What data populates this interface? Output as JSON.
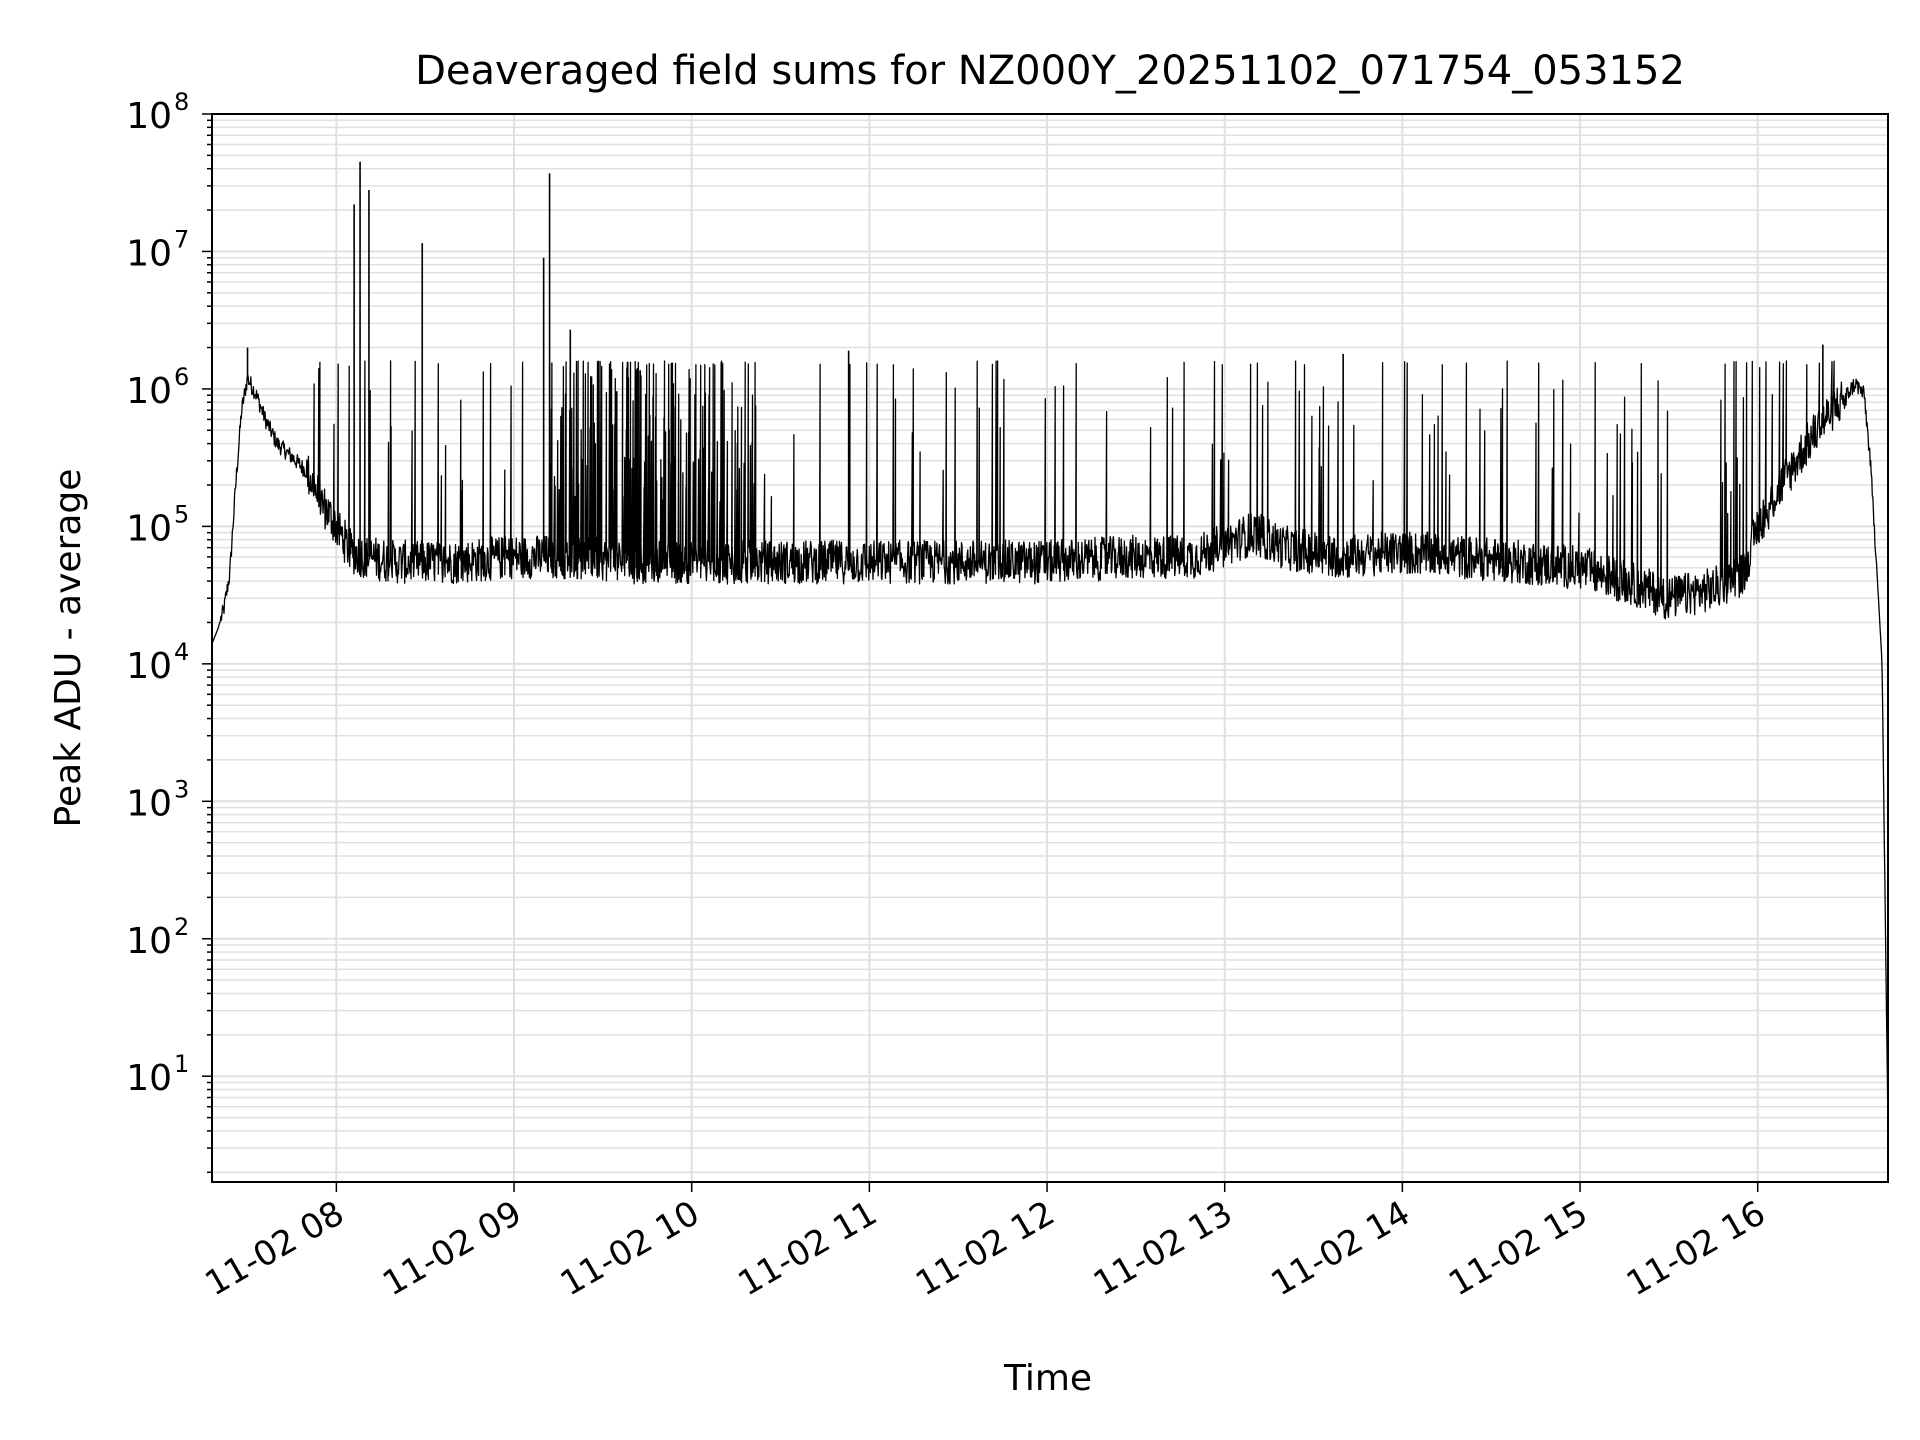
{
  "chart_data": {
    "type": "line",
    "title": "Deaveraged field sums for NZ000Y_20251102_071754_053152",
    "xlabel": "Time",
    "ylabel": "Peak ADU - average",
    "y_scale": "log",
    "ylim": [
      1.7,
      100000000
    ],
    "xlim": [
      "11-02 07:18",
      "11-02 16:44"
    ],
    "x_ticks": [
      "11-02 08",
      "11-02 09",
      "11-02 10",
      "11-02 11",
      "11-02 12",
      "11-02 13",
      "11-02 14",
      "11-02 15",
      "11-02 16"
    ],
    "y_ticks": [
      {
        "base": "10",
        "exp": "1"
      },
      {
        "base": "10",
        "exp": "2"
      },
      {
        "base": "10",
        "exp": "3"
      },
      {
        "base": "10",
        "exp": "4"
      },
      {
        "base": "10",
        "exp": "5"
      },
      {
        "base": "10",
        "exp": "6"
      },
      {
        "base": "10",
        "exp": "7"
      },
      {
        "base": "10",
        "exp": "8"
      }
    ],
    "grid": true,
    "line_color": "#000000",
    "grid_color": "#e0e0e0",
    "series": [
      {
        "x": [
          "11-02 07:18",
          "11-02 07:20",
          "11-02 07:22",
          "11-02 07:24",
          "11-02 07:26",
          "11-02 07:28",
          "11-02 07:30",
          "11-02 07:33",
          "11-02 07:36",
          "11-02 07:40",
          "11-02 07:45",
          "11-02 07:50",
          "11-02 07:55",
          "11-02 08:00",
          "11-02 08:05",
          "11-02 08:10",
          "11-02 08:20",
          "11-02 08:40",
          "11-02 09:00",
          "11-02 09:20",
          "11-02 09:40",
          "11-02 10:00",
          "11-02 10:30",
          "11-02 11:00",
          "11-02 11:30",
          "11-02 12:00",
          "11-02 12:30",
          "11-02 12:50",
          "11-02 13:10",
          "11-02 13:20",
          "11-02 13:40",
          "11-02 14:00",
          "11-02 14:20",
          "11-02 14:40",
          "11-02 15:00",
          "11-02 15:15",
          "11-02 15:30",
          "11-02 15:45",
          "11-02 15:55",
          "11-02 16:00",
          "11-02 16:08",
          "11-02 16:15",
          "11-02 16:20",
          "11-02 16:25",
          "11-02 16:30",
          "11-02 16:33",
          "11-02 16:36",
          "11-02 16:38",
          "11-02 16:40",
          "11-02 16:42",
          "11-02 16:43",
          "11-02 16:44"
        ],
        "y": [
          14000,
          18000,
          25000,
          45000,
          200000,
          700000,
          1200000,
          900000,
          600000,
          400000,
          320000,
          250000,
          150000,
          100000,
          65000,
          60000,
          55000,
          55000,
          60000,
          60000,
          55000,
          55000,
          55000,
          55000,
          55000,
          55000,
          60000,
          60000,
          90000,
          70000,
          60000,
          65000,
          60000,
          55000,
          50000,
          40000,
          30000,
          35000,
          45000,
          100000,
          200000,
          350000,
          500000,
          700000,
          900000,
          1100000,
          900000,
          300000,
          60000,
          10000,
          200,
          4
        ]
      }
    ],
    "spikes": [
      {
        "x": "11-02 07:30",
        "y": 2000000
      },
      {
        "x": "11-02 08:06",
        "y": 22000000
      },
      {
        "x": "11-02 08:08",
        "y": 45000000
      },
      {
        "x": "11-02 08:11",
        "y": 28000000
      },
      {
        "x": "11-02 08:29",
        "y": 11500000
      },
      {
        "x": "11-02 09:10",
        "y": 9000000
      },
      {
        "x": "11-02 09:12",
        "y": 37000000
      },
      {
        "x": "11-02 09:19",
        "y": 2700000
      },
      {
        "x": "11-02 10:53",
        "y": 1900000
      },
      {
        "x": "11-02 13:40",
        "y": 1800000
      },
      {
        "x": "11-02 16:22",
        "y": 2100000
      }
    ],
    "clipped_max": 1600000,
    "clipped_until": "11-02 10:23"
  }
}
